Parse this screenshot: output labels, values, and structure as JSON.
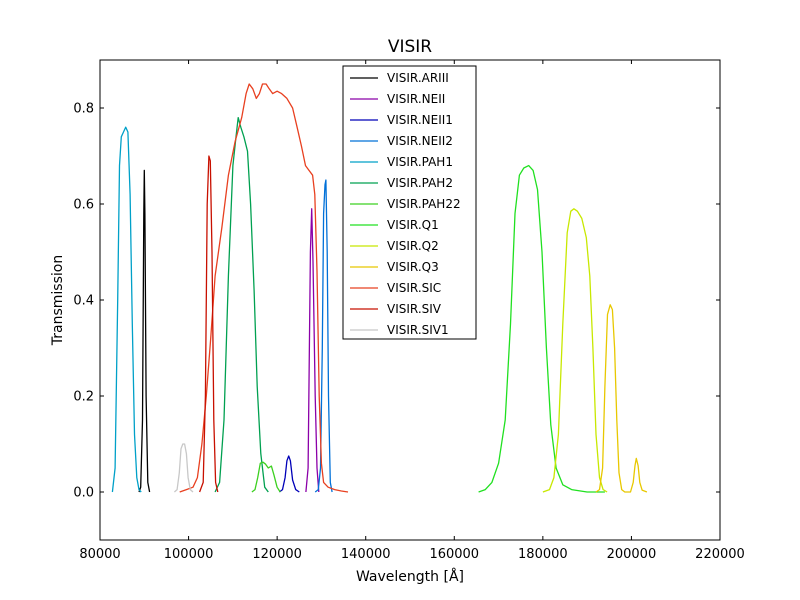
{
  "chart_data": {
    "type": "line",
    "title": "VISIR",
    "xlabel": "Wavelength [Å]",
    "ylabel": "Transmission",
    "xlim": [
      80000,
      220000
    ],
    "ylim": [
      -0.1,
      0.9
    ],
    "xticks": [
      80000,
      100000,
      120000,
      140000,
      160000,
      180000,
      200000,
      220000
    ],
    "xtick_labels": [
      "80000",
      "100000",
      "120000",
      "140000",
      "160000",
      "180000",
      "200000",
      "220000"
    ],
    "yticks": [
      0.0,
      0.2,
      0.4,
      0.6,
      0.8
    ],
    "ytick_labels": [
      "0.0",
      "0.2",
      "0.4",
      "0.6",
      "0.8"
    ],
    "grid": false,
    "legend_position": "top-center",
    "series": [
      {
        "name": "VISIR.ARIII",
        "color": "#000000",
        "points": [
          [
            88800,
            0.0
          ],
          [
            89200,
            0.01
          ],
          [
            89600,
            0.15
          ],
          [
            89900,
            0.58
          ],
          [
            90000,
            0.67
          ],
          [
            90150,
            0.58
          ],
          [
            90400,
            0.2
          ],
          [
            90800,
            0.02
          ],
          [
            91200,
            0.0
          ]
        ]
      },
      {
        "name": "VISIR.NEII",
        "color": "#8b00a8",
        "points": [
          [
            126500,
            0.0
          ],
          [
            127000,
            0.05
          ],
          [
            127500,
            0.5
          ],
          [
            127800,
            0.59
          ],
          [
            128100,
            0.48
          ],
          [
            128600,
            0.2
          ],
          [
            129000,
            0.05
          ],
          [
            129400,
            0.0
          ]
        ]
      },
      {
        "name": "VISIR.NEII1",
        "color": "#0000b8",
        "points": [
          [
            120500,
            0.0
          ],
          [
            121200,
            0.005
          ],
          [
            121800,
            0.03
          ],
          [
            122200,
            0.065
          ],
          [
            122600,
            0.075
          ],
          [
            123000,
            0.065
          ],
          [
            123500,
            0.025
          ],
          [
            124200,
            0.005
          ],
          [
            125000,
            0.0
          ]
        ]
      },
      {
        "name": "VISIR.NEII2",
        "color": "#0070d8",
        "points": [
          [
            128600,
            0.0
          ],
          [
            129300,
            0.005
          ],
          [
            129800,
            0.05
          ],
          [
            130200,
            0.3
          ],
          [
            130500,
            0.58
          ],
          [
            130800,
            0.64
          ],
          [
            131000,
            0.65
          ],
          [
            131300,
            0.5
          ],
          [
            131600,
            0.2
          ],
          [
            132000,
            0.02
          ],
          [
            132400,
            0.0
          ]
        ]
      },
      {
        "name": "VISIR.PAH1",
        "color": "#00a0c8",
        "points": [
          [
            82800,
            0.0
          ],
          [
            83400,
            0.05
          ],
          [
            84000,
            0.4
          ],
          [
            84400,
            0.68
          ],
          [
            84800,
            0.74
          ],
          [
            85300,
            0.75
          ],
          [
            85800,
            0.76
          ],
          [
            86300,
            0.75
          ],
          [
            86800,
            0.62
          ],
          [
            87300,
            0.35
          ],
          [
            87800,
            0.12
          ],
          [
            88300,
            0.03
          ],
          [
            88800,
            0.005
          ],
          [
            89300,
            0.0
          ]
        ]
      },
      {
        "name": "VISIR.PAH2",
        "color": "#00a050",
        "points": [
          [
            106000,
            0.0
          ],
          [
            107000,
            0.02
          ],
          [
            108000,
            0.15
          ],
          [
            109000,
            0.45
          ],
          [
            110000,
            0.68
          ],
          [
            110700,
            0.74
          ],
          [
            111200,
            0.78
          ],
          [
            111800,
            0.76
          ],
          [
            112500,
            0.74
          ],
          [
            113300,
            0.71
          ],
          [
            114000,
            0.6
          ],
          [
            114800,
            0.42
          ],
          [
            115500,
            0.22
          ],
          [
            116300,
            0.08
          ],
          [
            117200,
            0.01
          ],
          [
            118000,
            0.0
          ]
        ]
      },
      {
        "name": "VISIR.PAH22",
        "color": "#3cd020",
        "points": [
          [
            114300,
            0.0
          ],
          [
            115000,
            0.005
          ],
          [
            115600,
            0.03
          ],
          [
            116200,
            0.06
          ],
          [
            116800,
            0.062
          ],
          [
            117400,
            0.058
          ],
          [
            118000,
            0.05
          ],
          [
            118700,
            0.054
          ],
          [
            119300,
            0.035
          ],
          [
            120000,
            0.01
          ],
          [
            120700,
            0.0
          ]
        ]
      },
      {
        "name": "VISIR.Q1",
        "color": "#20e020",
        "points": [
          [
            165500,
            0.0
          ],
          [
            167000,
            0.005
          ],
          [
            168500,
            0.02
          ],
          [
            170000,
            0.06
          ],
          [
            171500,
            0.15
          ],
          [
            172700,
            0.35
          ],
          [
            173700,
            0.58
          ],
          [
            174700,
            0.66
          ],
          [
            175700,
            0.675
          ],
          [
            176800,
            0.68
          ],
          [
            177800,
            0.67
          ],
          [
            178800,
            0.63
          ],
          [
            179800,
            0.5
          ],
          [
            180800,
            0.3
          ],
          [
            181800,
            0.14
          ],
          [
            183000,
            0.05
          ],
          [
            184500,
            0.015
          ],
          [
            186500,
            0.005
          ],
          [
            190000,
            0.0
          ],
          [
            194000,
            0.0
          ]
        ]
      },
      {
        "name": "VISIR.Q2",
        "color": "#c8e800",
        "points": [
          [
            180000,
            0.0
          ],
          [
            181500,
            0.005
          ],
          [
            182500,
            0.03
          ],
          [
            183500,
            0.12
          ],
          [
            184500,
            0.35
          ],
          [
            185500,
            0.54
          ],
          [
            186300,
            0.585
          ],
          [
            187000,
            0.59
          ],
          [
            187800,
            0.585
          ],
          [
            188800,
            0.57
          ],
          [
            189800,
            0.53
          ],
          [
            190600,
            0.45
          ],
          [
            191300,
            0.3
          ],
          [
            192000,
            0.12
          ],
          [
            192800,
            0.03
          ],
          [
            193600,
            0.005
          ],
          [
            194500,
            0.0
          ]
        ]
      },
      {
        "name": "VISIR.Q3",
        "color": "#e8c800",
        "points": [
          [
            192000,
            0.0
          ],
          [
            192800,
            0.005
          ],
          [
            193500,
            0.05
          ],
          [
            194000,
            0.22
          ],
          [
            194600,
            0.37
          ],
          [
            195200,
            0.39
          ],
          [
            195700,
            0.38
          ],
          [
            196200,
            0.3
          ],
          [
            196700,
            0.15
          ],
          [
            197200,
            0.04
          ],
          [
            197800,
            0.005
          ],
          [
            198500,
            0.0
          ],
          [
            199800,
            0.0
          ],
          [
            200400,
            0.02
          ],
          [
            200800,
            0.055
          ],
          [
            201100,
            0.07
          ],
          [
            201500,
            0.055
          ],
          [
            201900,
            0.02
          ],
          [
            202400,
            0.004
          ],
          [
            203500,
            0.0
          ]
        ]
      },
      {
        "name": "VISIR.SIC",
        "color": "#e84020",
        "points": [
          [
            98000,
            0.0
          ],
          [
            99500,
            0.005
          ],
          [
            101000,
            0.01
          ],
          [
            102000,
            0.03
          ],
          [
            103000,
            0.1
          ],
          [
            104000,
            0.2
          ],
          [
            105000,
            0.32
          ],
          [
            106000,
            0.45
          ],
          [
            107500,
            0.55
          ],
          [
            109000,
            0.66
          ],
          [
            110500,
            0.73
          ],
          [
            112000,
            0.78
          ],
          [
            113000,
            0.83
          ],
          [
            113700,
            0.85
          ],
          [
            114500,
            0.84
          ],
          [
            115300,
            0.82
          ],
          [
            116000,
            0.83
          ],
          [
            116700,
            0.85
          ],
          [
            117500,
            0.85
          ],
          [
            118200,
            0.84
          ],
          [
            119000,
            0.83
          ],
          [
            120000,
            0.835
          ],
          [
            121000,
            0.83
          ],
          [
            122200,
            0.82
          ],
          [
            123500,
            0.8
          ],
          [
            124500,
            0.76
          ],
          [
            125500,
            0.72
          ],
          [
            126400,
            0.68
          ],
          [
            127200,
            0.67
          ],
          [
            128000,
            0.66
          ],
          [
            128500,
            0.62
          ],
          [
            129000,
            0.46
          ],
          [
            129500,
            0.2
          ],
          [
            130000,
            0.06
          ],
          [
            130500,
            0.02
          ],
          [
            131500,
            0.01
          ],
          [
            133000,
            0.005
          ],
          [
            134500,
            0.002
          ],
          [
            136000,
            0.0
          ]
        ]
      },
      {
        "name": "VISIR.SIV",
        "color": "#c81000",
        "points": [
          [
            102500,
            0.0
          ],
          [
            103300,
            0.02
          ],
          [
            103800,
            0.2
          ],
          [
            104200,
            0.6
          ],
          [
            104600,
            0.7
          ],
          [
            104900,
            0.69
          ],
          [
            105300,
            0.5
          ],
          [
            105700,
            0.15
          ],
          [
            106100,
            0.02
          ],
          [
            106600,
            0.0
          ]
        ]
      },
      {
        "name": "VISIR.SIV1",
        "color": "#c8c8c8",
        "points": [
          [
            96800,
            0.0
          ],
          [
            97400,
            0.005
          ],
          [
            97900,
            0.04
          ],
          [
            98300,
            0.09
          ],
          [
            98700,
            0.1
          ],
          [
            99100,
            0.1
          ],
          [
            99500,
            0.08
          ],
          [
            99900,
            0.03
          ],
          [
            100400,
            0.005
          ],
          [
            101000,
            0.0
          ]
        ]
      }
    ]
  }
}
